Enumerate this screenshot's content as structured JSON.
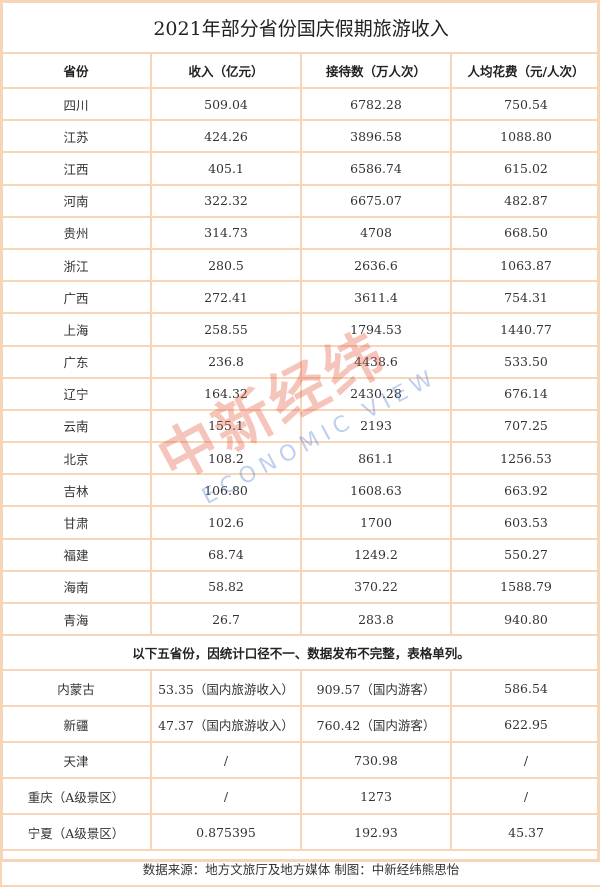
{
  "title": "2021年部分省份国庆假期旅游收入",
  "headers": [
    "省份",
    "收入（亿元）",
    "接待数（万人次）",
    "人均花费（元/人次）"
  ],
  "rows": [
    [
      "四川",
      "509.04",
      "6782.28",
      "750.54"
    ],
    [
      "江苏",
      "424.26",
      "3896.58",
      "1088.80"
    ],
    [
      "江西",
      "405.1",
      "6586.74",
      "615.02"
    ],
    [
      "河南",
      "322.32",
      "6675.07",
      "482.87"
    ],
    [
      "贵州",
      "314.73",
      "4708",
      "668.50"
    ],
    [
      "浙江",
      "280.5",
      "2636.6",
      "1063.87"
    ],
    [
      "广西",
      "272.41",
      "3611.4",
      "754.31"
    ],
    [
      "上海",
      "258.55",
      "1794.53",
      "1440.77"
    ],
    [
      "广东",
      "236.8",
      "4438.6",
      "533.50"
    ],
    [
      "辽宁",
      "164.32",
      "2430.28",
      "676.14"
    ],
    [
      "云南",
      "155.1",
      "2193",
      "707.25"
    ],
    [
      "北京",
      "108.2",
      "861.1",
      "1256.53"
    ],
    [
      "吉林",
      "106.80",
      "1608.63",
      "663.92"
    ],
    [
      "甘肃",
      "102.6",
      "1700",
      "603.53"
    ],
    [
      "福建",
      "68.74",
      "1249.2",
      "550.27"
    ],
    [
      "海南",
      "58.82",
      "370.22",
      "1588.79"
    ],
    [
      "青海",
      "26.7",
      "283.8",
      "940.80"
    ]
  ],
  "note": "以下五省份，因统计口径不一、数据发布不完整，表格单列。",
  "extra_rows": [
    [
      "内蒙古",
      "53.35（国内旅游收入）",
      "909.57（国内游客）",
      "586.54"
    ],
    [
      "新疆",
      "47.37（国内旅游收入）",
      "760.42（国内游客）",
      "622.95"
    ],
    [
      "天津",
      "/",
      "730.98",
      "/"
    ],
    [
      "重庆（A级景区）",
      "/",
      "1273",
      "/"
    ],
    [
      "宁夏（A级景区）",
      "0.875395",
      "192.93",
      "45.37"
    ]
  ],
  "footer": "数据来源：地方文旅厅及地方媒体  制图：中新经纬熊思怡",
  "watermark": {
    "cn": "中新经纬",
    "en": "ECONOMIC VIEW"
  },
  "colors": {
    "border": "#f6d5b8"
  }
}
